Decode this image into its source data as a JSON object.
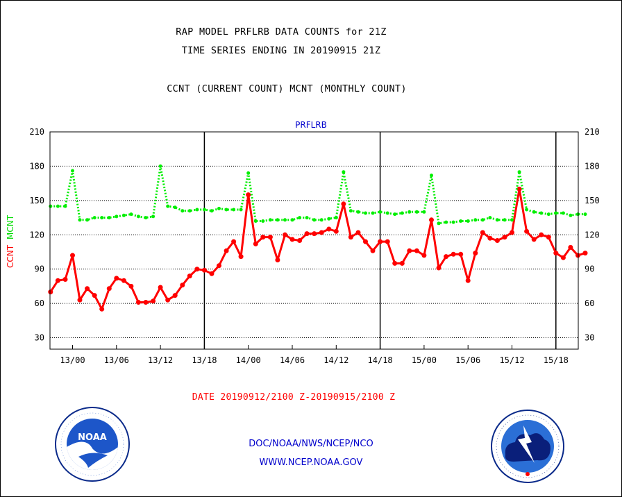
{
  "header": {
    "title_line1": "RAP MODEL PRFLRB DATA COUNTS for 21Z",
    "title_line2": "TIME SERIES ENDING IN 20190915 21Z",
    "subtitle": "CCNT (CURRENT COUNT) MCNT (MONTHLY COUNT)"
  },
  "axis_labels": {
    "ccnt": "CCNT",
    "mcnt": "MCNT",
    "top": "PRFLRB",
    "date_range": "DATE 20190912/2100 Z-20190915/2100 Z"
  },
  "footer": {
    "line1": "DOC/NOAA/NWS/NCEP/NCO",
    "line2": "WWW.NCEP.NOAA.GOV"
  },
  "logos": {
    "left": {
      "name": "noaa-logo",
      "text": "NOAA",
      "ring_text": "NATIONAL OCEANIC AND ATMOSPHERIC ADMINISTRATION · U.S. DEPARTMENT OF COMMERCE"
    },
    "right": {
      "name": "nws-logo",
      "ring_text": "NATIONAL WEATHER SERVICE"
    }
  },
  "colors": {
    "ccnt": "#ff0000",
    "mcnt": "#00ee00",
    "accent": "#0000cc"
  },
  "chart_data": {
    "type": "line",
    "title": "PRFLRB",
    "ylim": [
      20,
      210
    ],
    "yticks": [
      30,
      60,
      90,
      120,
      150,
      180,
      210
    ],
    "xticks": [
      "13/00",
      "13/06",
      "13/12",
      "13/18",
      "14/00",
      "14/06",
      "14/12",
      "14/18",
      "15/00",
      "15/06",
      "15/12",
      "15/18"
    ],
    "day_dividers": [
      "13/18",
      "14/18",
      "15/18"
    ],
    "grid": true,
    "x_start_hour": -3,
    "x_step_hours": 1,
    "series": [
      {
        "name": "CCNT",
        "color": "#ff0000",
        "style": "solid",
        "values": [
          70,
          80,
          81,
          102,
          63,
          73,
          67,
          55,
          73,
          82,
          80,
          75,
          61,
          61,
          62,
          74,
          63,
          67,
          76,
          84,
          90,
          89,
          86,
          93,
          106,
          114,
          101,
          155,
          112,
          118,
          118,
          98,
          120,
          116,
          115,
          121,
          121,
          122,
          125,
          123,
          147,
          118,
          122,
          114,
          106,
          114,
          114,
          95,
          95,
          106,
          106,
          102,
          133,
          91,
          101,
          103,
          103,
          80,
          104,
          122,
          117,
          115,
          118,
          122,
          160,
          123,
          116,
          120,
          118,
          104,
          100,
          109,
          102,
          104
        ]
      },
      {
        "name": "MCNT",
        "color": "#00ee00",
        "style": "dotted",
        "values": [
          145,
          145,
          145,
          176,
          133,
          133,
          135,
          135,
          135,
          136,
          137,
          138,
          136,
          135,
          136,
          180,
          145,
          144,
          141,
          141,
          142,
          142,
          141,
          143,
          142,
          142,
          142,
          174,
          132,
          132,
          133,
          133,
          133,
          133,
          135,
          135,
          133,
          133,
          134,
          135,
          175,
          141,
          140,
          139,
          139,
          140,
          139,
          138,
          139,
          140,
          140,
          140,
          172,
          130,
          131,
          131,
          132,
          132,
          133,
          133,
          135,
          133,
          133,
          133,
          175,
          142,
          140,
          139,
          138,
          139,
          139,
          137,
          138,
          138
        ]
      }
    ]
  }
}
